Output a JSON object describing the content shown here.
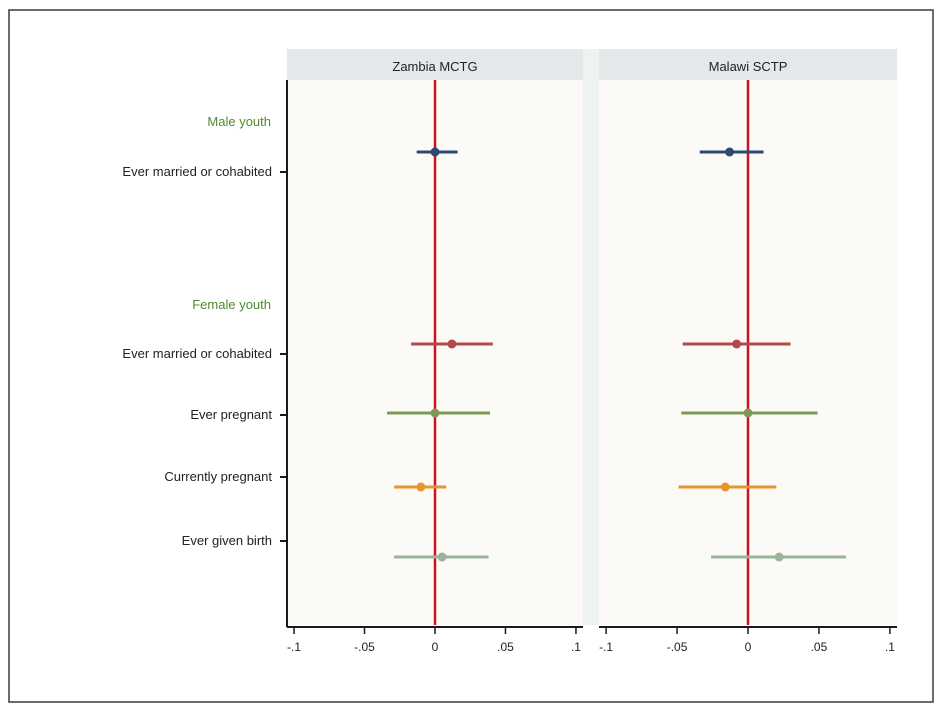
{
  "chart_data": {
    "type": "scatter",
    "subtype": "coefficient-plot-with-confidence-intervals",
    "panels": [
      {
        "id": "zambia",
        "title": "Zambia MCTG"
      },
      {
        "id": "malawi",
        "title": "Malawi SCTP"
      }
    ],
    "group_labels": [
      {
        "id": "male",
        "label": "Male youth",
        "color": "#4e8a2e"
      },
      {
        "id": "female",
        "label": "Female youth",
        "color": "#4e8a2e"
      }
    ],
    "rows": [
      {
        "id": "male_married",
        "group": "male",
        "label": "Ever married or cohabited",
        "color": "#2c4a72"
      },
      {
        "id": "female_married",
        "group": "female",
        "label": "Ever married or cohabited",
        "color": "#b24a4a"
      },
      {
        "id": "ever_pregnant",
        "group": "female",
        "label": "Ever pregnant",
        "color": "#7a9a52"
      },
      {
        "id": "currently_pregnant",
        "group": "female",
        "label": "Currently pregnant",
        "color": "#e8952e"
      },
      {
        "id": "ever_birth",
        "group": "female",
        "label": "Ever given birth",
        "color": "#9ab39a"
      }
    ],
    "estimates": {
      "zambia": [
        {
          "row": "male_married",
          "point": 0.0,
          "lower": -0.013,
          "upper": 0.016
        },
        {
          "row": "female_married",
          "point": 0.012,
          "lower": -0.017,
          "upper": 0.041
        },
        {
          "row": "ever_pregnant",
          "point": 0.0,
          "lower": -0.034,
          "upper": 0.039
        },
        {
          "row": "currently_pregnant",
          "point": -0.01,
          "lower": -0.029,
          "upper": 0.008
        },
        {
          "row": "ever_birth",
          "point": 0.005,
          "lower": -0.029,
          "upper": 0.038
        }
      ],
      "malawi": [
        {
          "row": "male_married",
          "point": -0.013,
          "lower": -0.034,
          "upper": 0.011
        },
        {
          "row": "female_married",
          "point": -0.008,
          "lower": -0.046,
          "upper": 0.03
        },
        {
          "row": "ever_pregnant",
          "point": 0.0,
          "lower": -0.047,
          "upper": 0.049
        },
        {
          "row": "currently_pregnant",
          "point": -0.016,
          "lower": -0.049,
          "upper": 0.02
        },
        {
          "row": "ever_birth",
          "point": 0.022,
          "lower": -0.026,
          "upper": 0.069
        }
      ]
    },
    "xaxis": {
      "range": [
        -0.105,
        0.105
      ],
      "ticks": [
        -0.1,
        -0.05,
        0,
        0.05,
        0.1
      ],
      "tick_labels": [
        "-.1",
        "-.05",
        "0",
        ".05",
        ".1"
      ]
    },
    "reference_line": {
      "x": 0,
      "color": "#d0101e"
    },
    "xlabel": "",
    "ylabel": "",
    "grid": false,
    "legend": "none"
  },
  "colors": {
    "panel_header_bg": "#e3e9ea",
    "plot_bg": "#fbfaf7",
    "gap_bg": "#eef2f1",
    "axis": "#1a1a1a",
    "text": "#222222"
  }
}
